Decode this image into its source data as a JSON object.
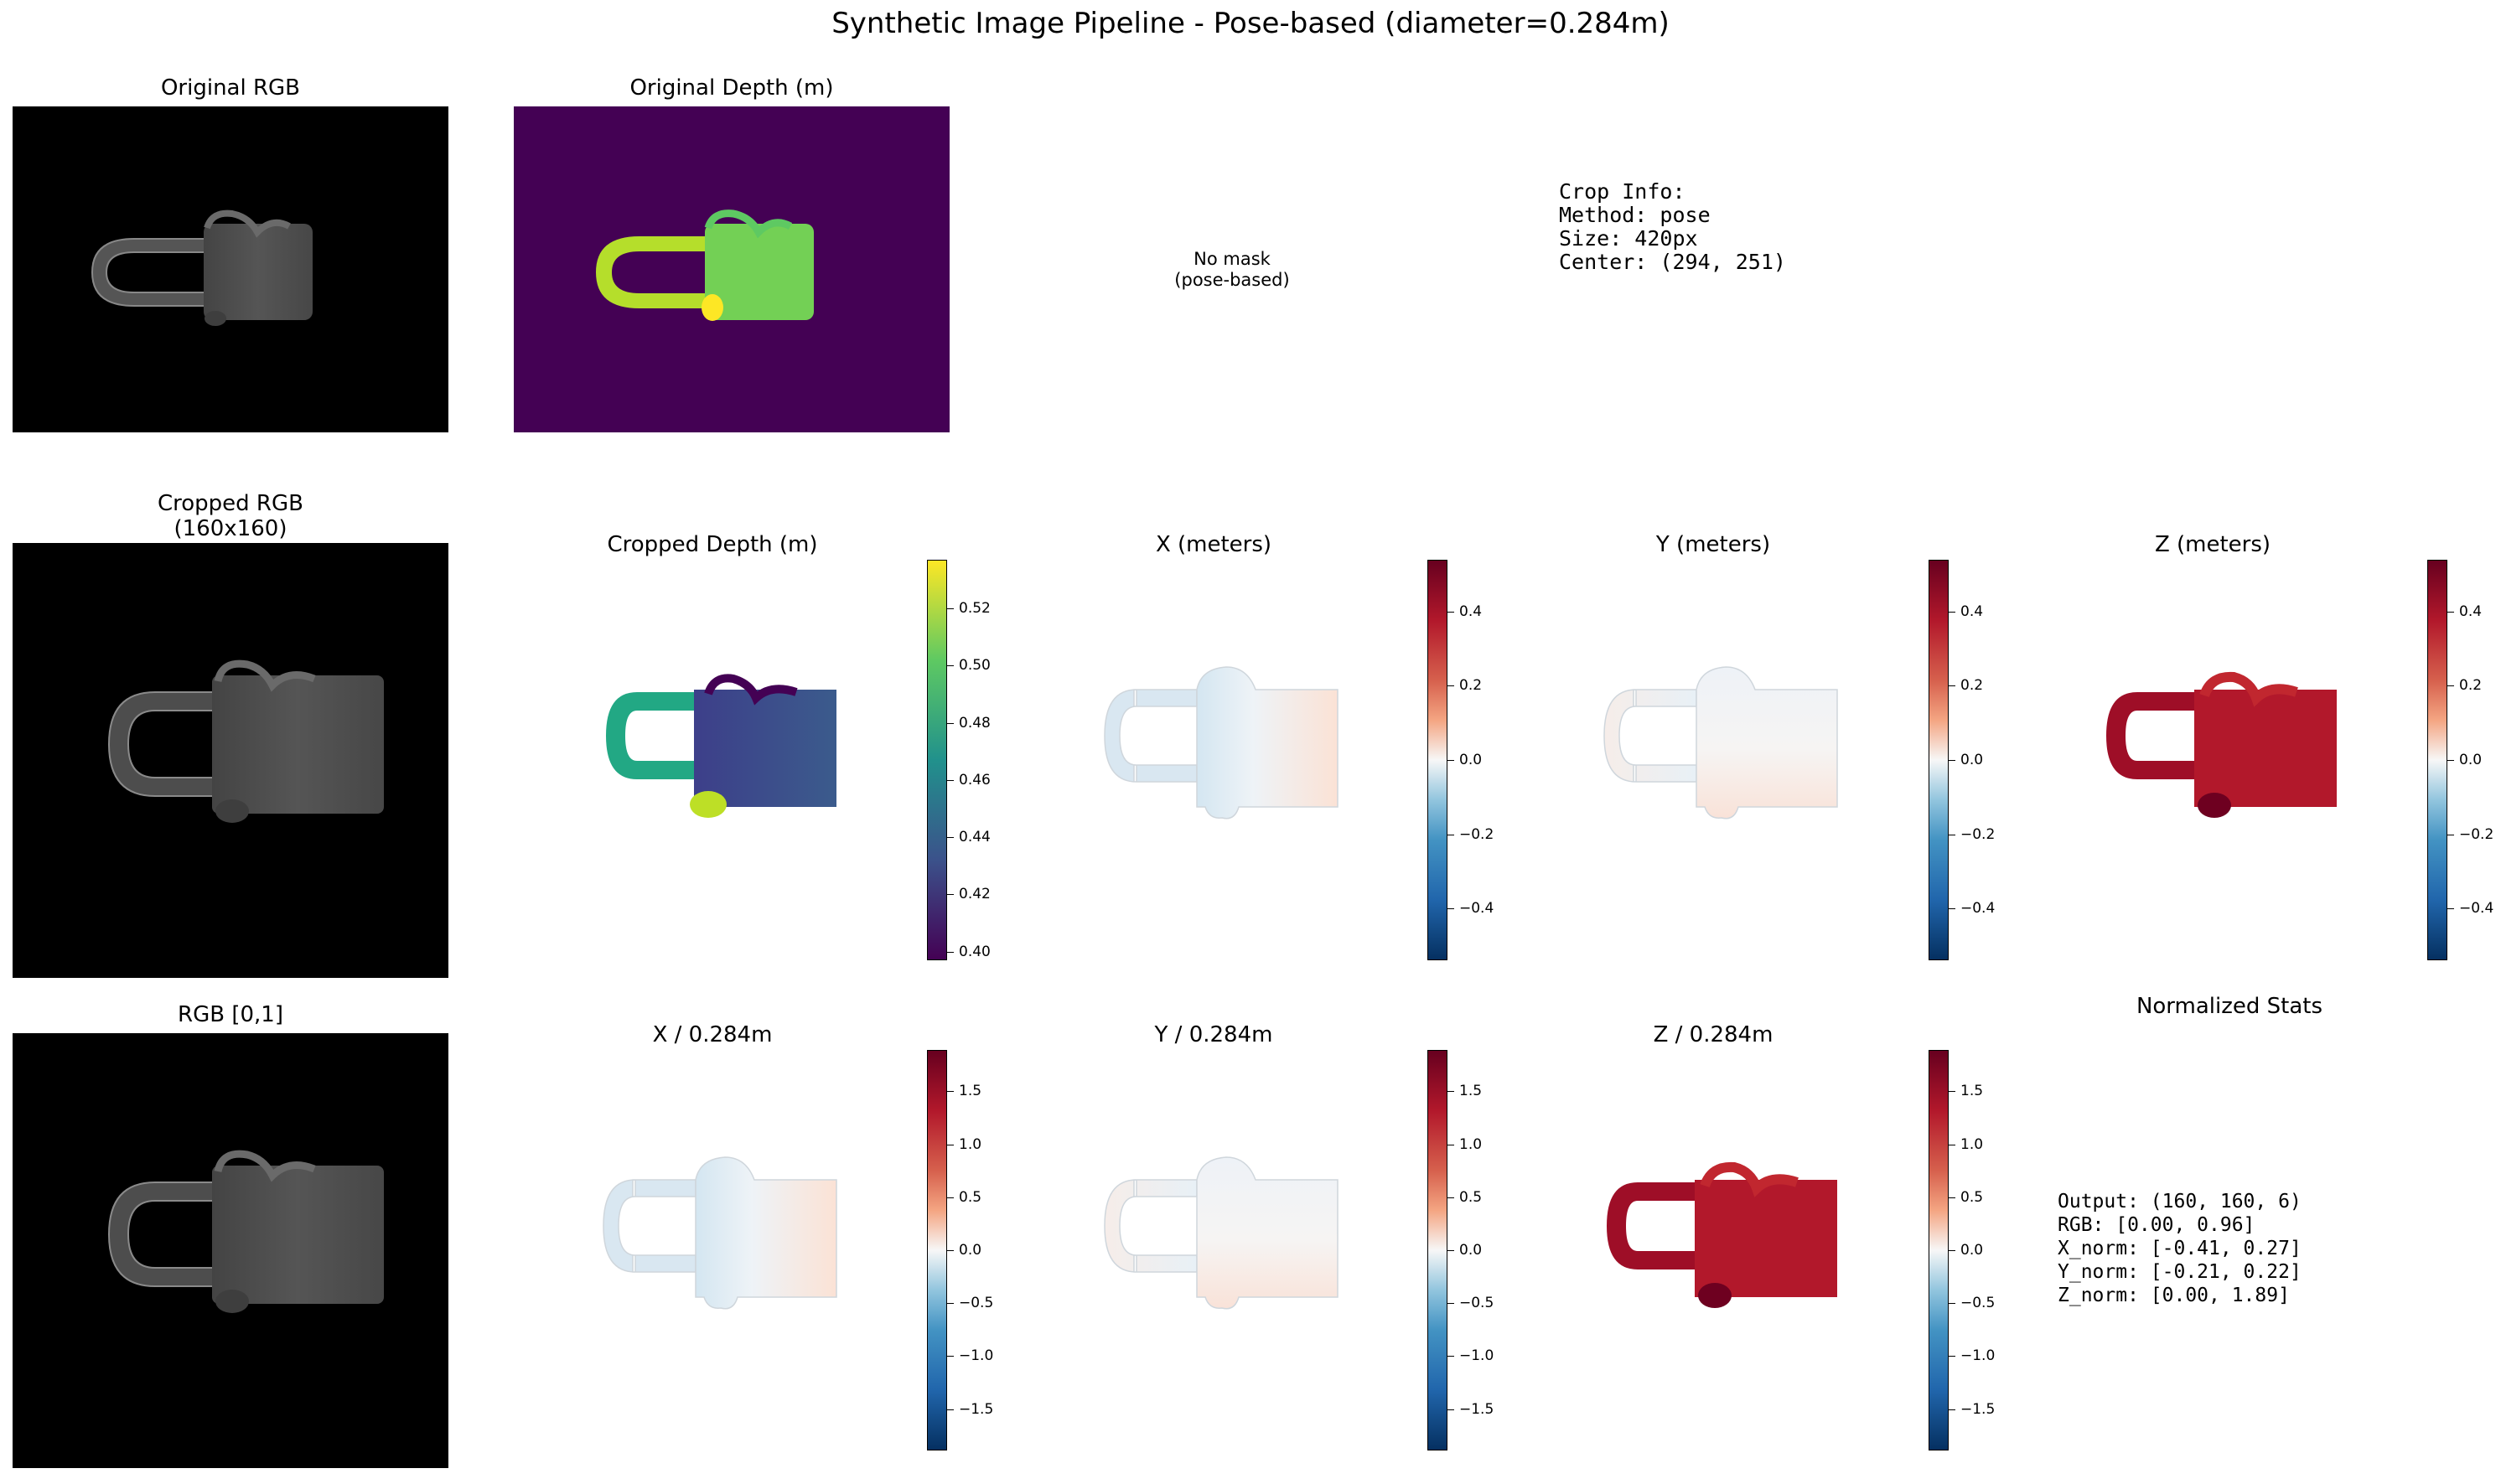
{
  "figure": {
    "title": "Synthetic Image Pipeline - Pose-based (diameter=0.284m)"
  },
  "colors": {
    "panel_bg": "#000000",
    "mug_gray": "#4d4d4d",
    "viridis_low": "#440154",
    "viridis_mid": "#21918c",
    "viridis_high": "#fde725",
    "rdbu_low": "#053061",
    "rdbu_zero": "#f7f7f7",
    "rdbu_high": "#67001f"
  },
  "panels": {
    "original_rgb": {
      "title": "Original RGB"
    },
    "original_depth": {
      "title": "Original Depth (m)"
    },
    "mask": {
      "text": "No mask\n(pose-based)"
    },
    "crop_info": {
      "text": "Crop Info:\nMethod: pose\nSize: 420px\nCenter: (294, 251)"
    },
    "cropped_rgb": {
      "title": "Cropped RGB\n(160x160)"
    },
    "cropped_depth": {
      "title": "Cropped Depth (m)"
    },
    "x_m": {
      "title": "X (meters)"
    },
    "y_m": {
      "title": "Y (meters)"
    },
    "z_m": {
      "title": "Z (meters)"
    },
    "rgb01": {
      "title": "RGB [0,1]"
    },
    "x_norm": {
      "title": "X / 0.284m"
    },
    "y_norm": {
      "title": "Y / 0.284m"
    },
    "z_norm": {
      "title": "Z / 0.284m"
    },
    "stats": {
      "title": "Normalized Stats",
      "text": "Output: (160, 160, 6)\nRGB: [0.00, 0.96]\nX_norm: [-0.41, 0.27]\nY_norm: [-0.21, 0.22]\nZ_norm: [0.00, 1.89]"
    }
  },
  "chart_data": [
    {
      "type": "heatmap",
      "panel": "cropped_depth",
      "colormap": "viridis",
      "range": [
        0.397,
        0.537
      ],
      "ticks": [
        "0.40",
        "0.42",
        "0.44",
        "0.46",
        "0.48",
        "0.50",
        "0.52"
      ]
    },
    {
      "type": "heatmap",
      "panel": "x_m",
      "colormap": "RdBu_r",
      "range": [
        -0.54,
        0.54
      ],
      "ticks": [
        "−0.4",
        "−0.2",
        "0.0",
        "0.2",
        "0.4"
      ]
    },
    {
      "type": "heatmap",
      "panel": "y_m",
      "colormap": "RdBu_r",
      "range": [
        -0.54,
        0.54
      ],
      "ticks": [
        "−0.4",
        "−0.2",
        "0.0",
        "0.2",
        "0.4"
      ]
    },
    {
      "type": "heatmap",
      "panel": "z_m",
      "colormap": "RdBu_r",
      "range": [
        -0.54,
        0.54
      ],
      "ticks": [
        "−0.4",
        "−0.2",
        "0.0",
        "0.2",
        "0.4"
      ]
    },
    {
      "type": "heatmap",
      "panel": "x_norm",
      "colormap": "RdBu_r",
      "range": [
        -1.89,
        1.89
      ],
      "ticks": [
        "−1.5",
        "−1.0",
        "−0.5",
        "0.0",
        "0.5",
        "1.0",
        "1.5"
      ]
    },
    {
      "type": "heatmap",
      "panel": "y_norm",
      "colormap": "RdBu_r",
      "range": [
        -1.89,
        1.89
      ],
      "ticks": [
        "−1.5",
        "−1.0",
        "−0.5",
        "0.0",
        "0.5",
        "1.0",
        "1.5"
      ]
    },
    {
      "type": "heatmap",
      "panel": "z_norm",
      "colormap": "RdBu_r",
      "range": [
        -1.89,
        1.89
      ],
      "ticks": [
        "−1.5",
        "−1.0",
        "−0.5",
        "0.0",
        "0.5",
        "1.0",
        "1.5"
      ]
    }
  ]
}
